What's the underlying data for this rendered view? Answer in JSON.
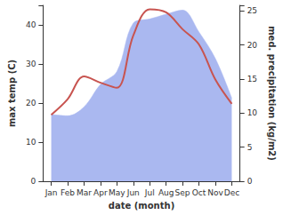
{
  "chart_data": {
    "type": "line",
    "categories": [
      "Jan",
      "Feb",
      "Mar",
      "Apr",
      "May",
      "Jun",
      "Jul",
      "Aug",
      "Sep",
      "Oct",
      "Nov",
      "Dec"
    ],
    "x_label": "date (month)",
    "y_label": "max temp (C)",
    "y2_label": "med. precipitation (kg/m2)",
    "ylim": [
      0,
      45
    ],
    "yticks": [
      0,
      10,
      20,
      30,
      40
    ],
    "y2lim": [
      0,
      25.8
    ],
    "y2ticks": [
      0,
      5,
      10,
      15,
      20,
      25
    ],
    "grid": false,
    "series": [
      {
        "name": "med. precipitation",
        "type": "area",
        "axis": "y2",
        "color": "#aab8f0",
        "values": [
          9.8,
          9.6,
          10.9,
          14.2,
          16.1,
          23.2,
          23.8,
          24.5,
          25.1,
          21.9,
          18.0,
          12.2
        ]
      },
      {
        "name": "max temp",
        "type": "line",
        "color": "#c85450",
        "values": [
          17,
          21,
          26.8,
          25.2,
          23.9,
          37.3,
          44,
          43.2,
          38.9,
          35,
          26,
          19.8
        ]
      }
    ]
  }
}
